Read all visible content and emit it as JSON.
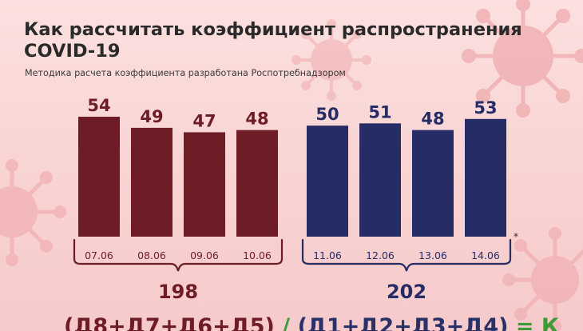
{
  "title": "Как рассчитать коэффициент распространения COVID-19",
  "subtitle": "Методика расчета коэффициента разработана Роспотребнадзором",
  "colors": {
    "group1": "#6e1c26",
    "group2": "#262c66",
    "accent": "#3d9a36",
    "background": "#f9d8d7"
  },
  "chart_data": {
    "type": "bar",
    "categories": [
      "07.06",
      "08.06",
      "09.06",
      "10.06",
      "11.06",
      "12.06",
      "13.06",
      "14.06"
    ],
    "values": [
      54,
      49,
      47,
      48,
      50,
      51,
      48,
      53
    ],
    "groups": [
      {
        "indices": [
          0,
          1,
          2,
          3
        ],
        "sum": "198"
      },
      {
        "indices": [
          4,
          5,
          6,
          7
        ],
        "sum": "202"
      }
    ],
    "asterisk": "*",
    "grid": false,
    "legend": "none"
  },
  "formula": {
    "left": "(Д8+Д7+Д6+Д5)",
    "divider": "/",
    "right": "(Д1+Д2+Д3+Д4)",
    "equals": "= К"
  }
}
